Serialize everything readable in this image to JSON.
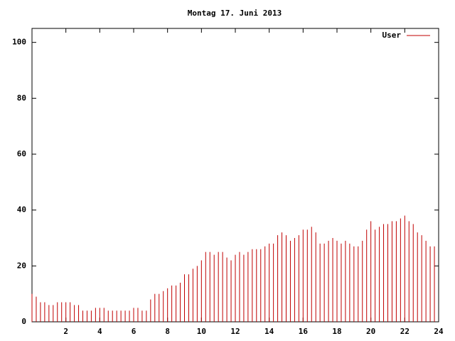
{
  "chart_data": {
    "type": "impulses",
    "title": "Montag 17. Juni 2013",
    "series": [
      {
        "name": "User",
        "color": "#c00000",
        "x": [
          0,
          0.25,
          0.5,
          0.75,
          1,
          1.25,
          1.5,
          1.75,
          2,
          2.25,
          2.5,
          2.75,
          3,
          3.25,
          3.5,
          3.75,
          4,
          4.25,
          4.5,
          4.75,
          5,
          5.25,
          5.5,
          5.75,
          6,
          6.25,
          6.5,
          6.75,
          7,
          7.25,
          7.5,
          7.75,
          8,
          8.25,
          8.5,
          8.75,
          9,
          9.25,
          9.5,
          9.75,
          10,
          10.25,
          10.5,
          10.75,
          11,
          11.25,
          11.5,
          11.75,
          12,
          12.25,
          12.5,
          12.75,
          13,
          13.25,
          13.5,
          13.75,
          14,
          14.25,
          14.5,
          14.75,
          15,
          15.25,
          15.5,
          15.75,
          16,
          16.25,
          16.5,
          16.75,
          17,
          17.25,
          17.5,
          17.75,
          18,
          18.25,
          18.5,
          18.75,
          19,
          19.25,
          19.5,
          19.75,
          20,
          20.25,
          20.5,
          20.75,
          21,
          21.25,
          21.5,
          21.75,
          22,
          22.25,
          22.5,
          22.75,
          23,
          23.25,
          23.5,
          23.75
        ],
        "values": [
          10,
          9,
          7,
          7,
          6,
          6,
          7,
          7,
          7,
          7,
          6,
          6,
          4,
          4,
          4,
          5,
          5,
          5,
          4,
          4,
          4,
          4,
          4,
          4,
          5,
          5,
          4,
          4,
          8,
          10,
          10,
          11,
          12,
          13,
          13,
          14,
          17,
          17,
          19,
          20,
          22,
          25,
          25,
          24,
          25,
          25,
          23,
          22,
          24,
          25,
          24,
          25,
          26,
          26,
          26,
          27,
          28,
          28,
          31,
          32,
          31,
          29,
          30,
          31,
          33,
          33,
          34,
          32,
          28,
          28,
          29,
          30,
          29,
          28,
          29,
          28,
          27,
          27,
          29,
          33,
          36,
          33,
          34,
          35,
          35,
          36,
          36,
          37,
          38,
          36,
          35,
          32,
          31,
          29,
          27,
          27
        ]
      }
    ],
    "xlim": [
      0,
      24
    ],
    "xticks": [
      2,
      4,
      6,
      8,
      10,
      12,
      14,
      16,
      18,
      20,
      22,
      24
    ],
    "ylim": [
      0,
      105
    ],
    "yticks": [
      0,
      20,
      40,
      60,
      80,
      100
    ],
    "legend": "top-right"
  }
}
